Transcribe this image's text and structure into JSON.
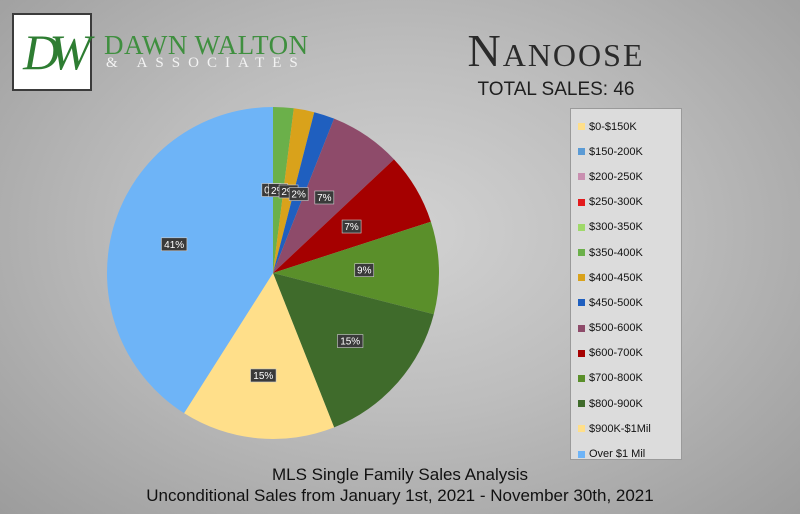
{
  "header": {
    "logo_mark": "DW",
    "brand_name": "DAWN WALTON",
    "brand_sub": "& ASSOCIATES",
    "title": "Nanoose",
    "total_sales": "TOTAL SALES: 46"
  },
  "footer": {
    "line1": "MLS Single Family Sales Analysis",
    "line2": "Unconditional Sales from January 1st, 2021 - November 30th, 2021"
  },
  "chart_data": {
    "type": "pie",
    "title": "Nanoose",
    "start": "top",
    "direction": "clockwise",
    "legend_position": "right",
    "slices": [
      {
        "label": "$0-$150K",
        "value": 0,
        "display": "",
        "color": "#ffdf8a"
      },
      {
        "label": "$150-200K",
        "value": 0,
        "display": "",
        "color": "#5b9bd5"
      },
      {
        "label": "$200-250K",
        "value": 0,
        "display": "",
        "color": "#c98fb0"
      },
      {
        "label": "$250-300K",
        "value": 0,
        "display": "",
        "color": "#e31a1c"
      },
      {
        "label": "$300-350K",
        "value": 0,
        "display": "0%",
        "color": "#9fd96a"
      },
      {
        "label": "$350-400K",
        "value": 2,
        "display": "2%",
        "color": "#6bb04a"
      },
      {
        "label": "$400-450K",
        "value": 2,
        "display": "2%",
        "color": "#d9a21b"
      },
      {
        "label": "$450-500K",
        "value": 2,
        "display": "2%",
        "color": "#1f5fbf"
      },
      {
        "label": "$500-600K",
        "value": 7,
        "display": "7%",
        "color": "#8e4b6a"
      },
      {
        "label": "$600-700K",
        "value": 7,
        "display": "7%",
        "color": "#a50000"
      },
      {
        "label": "$700-800K",
        "value": 9,
        "display": "9%",
        "color": "#5a8f2a"
      },
      {
        "label": "$800-900K",
        "value": 15,
        "display": "15%",
        "color": "#3f6b2b"
      },
      {
        "label": "$900K-$1Mil",
        "value": 15,
        "display": "15%",
        "color": "#ffdf8a"
      },
      {
        "label": "Over $1 Mil",
        "value": 41,
        "display": "41%",
        "color": "#6eb4f7"
      }
    ]
  }
}
